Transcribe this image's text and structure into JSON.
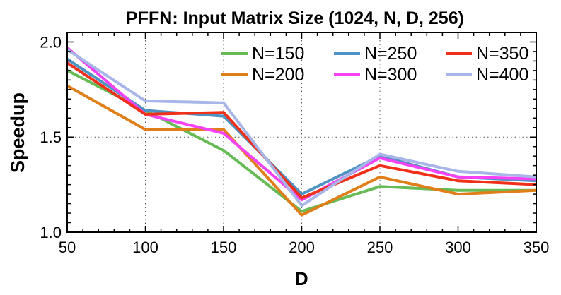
{
  "chart_data": {
    "type": "line",
    "title": "PFFN: Input Matrix Size (1024, N, D, 256)",
    "xlabel": "D",
    "ylabel": "Speedup",
    "x": [
      50,
      100,
      150,
      200,
      250,
      300,
      350
    ],
    "xlim": [
      50,
      350
    ],
    "ylim": [
      1.0,
      2.05
    ],
    "xticks": [
      "50",
      "100",
      "150",
      "200",
      "250",
      "300",
      "350"
    ],
    "yticks": [
      "1.0",
      "1.5",
      "2.0"
    ],
    "grid": true,
    "legend_position": "top-right",
    "series": [
      {
        "name": "N=150",
        "color": "#66bb55",
        "values": [
          1.85,
          1.64,
          1.43,
          1.11,
          1.24,
          1.22,
          1.22
        ]
      },
      {
        "name": "N=200",
        "color": "#e07f1a",
        "values": [
          1.77,
          1.54,
          1.54,
          1.09,
          1.29,
          1.2,
          1.22
        ]
      },
      {
        "name": "N=250",
        "color": "#4f93c3",
        "values": [
          1.91,
          1.64,
          1.61,
          1.2,
          1.4,
          1.29,
          1.27
        ]
      },
      {
        "name": "N=300",
        "color": "#f542f5",
        "values": [
          1.97,
          1.62,
          1.52,
          1.17,
          1.39,
          1.29,
          1.28
        ]
      },
      {
        "name": "N=350",
        "color": "#f0301a",
        "values": [
          1.89,
          1.62,
          1.63,
          1.18,
          1.35,
          1.27,
          1.25
        ]
      },
      {
        "name": "N=400",
        "color": "#a8b5e8",
        "values": [
          1.96,
          1.69,
          1.68,
          1.14,
          1.41,
          1.32,
          1.29
        ]
      }
    ]
  }
}
